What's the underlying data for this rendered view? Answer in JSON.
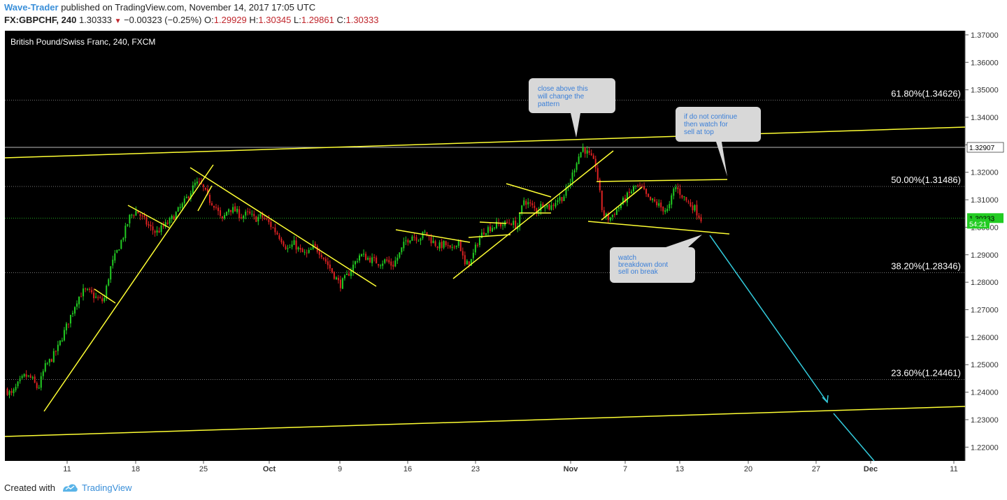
{
  "header": {
    "author": "Wave-Trader",
    "published_text": "published on TradingView.com, November 14, 2017 17:05 UTC",
    "symbol": "FX:GBPCHF, 240",
    "last": "1.30333",
    "change": "−0.00323 (−0.25%)",
    "open_label": "O:",
    "open": "1.29929",
    "high_label": "H:",
    "high": "1.30345",
    "low_label": "L:",
    "low": "1.29861",
    "close_label": "C:",
    "close": "1.30333"
  },
  "footer": {
    "created_with": "Created with",
    "brand": "TradingView"
  },
  "colors": {
    "bg": "#000000",
    "up": "#22cc22",
    "down": "#dd2222",
    "trend": "#ffff33",
    "projection": "#33ccdd",
    "callout": "#d8d8d8",
    "callout_text": "#3a7fd9"
  },
  "chart_data": {
    "type": "candlestick",
    "title": "British Pound/Swiss Franc, 240, FXCM",
    "ylim": [
      1.215,
      1.3715
    ],
    "y_ticks": [
      "1.37000",
      "1.36000",
      "1.35000",
      "1.34000",
      "1.33000",
      "1.32000",
      "1.31000",
      "1.30000",
      "1.29000",
      "1.28000",
      "1.27000",
      "1.26000",
      "1.25000",
      "1.24000",
      "1.23000",
      "1.22000"
    ],
    "x_ticks": [
      "11",
      "18",
      "25",
      "Oct",
      "9",
      "16",
      "23",
      "Nov",
      "7",
      "13",
      "20",
      "27",
      "Dec",
      "11"
    ],
    "fib_levels": [
      {
        "label": "61.80%(1.34626)",
        "value": 1.34626
      },
      {
        "label": "50.00%(1.31486)",
        "value": 1.31486
      },
      {
        "label": "38.20%(1.28346)",
        "value": 1.28346
      },
      {
        "label": "23.60%(1.24461)",
        "value": 1.24461
      }
    ],
    "price_labels": [
      {
        "text": "1.32907",
        "value": 1.32907
      },
      {
        "text": "1.30333",
        "value": 1.30333
      },
      {
        "text": "54:21",
        "value": 1.3013
      }
    ],
    "price_path": [
      [
        0,
        1.241
      ],
      [
        1,
        1.239
      ],
      [
        2,
        1.243
      ],
      [
        3,
        1.246
      ],
      [
        4,
        1.245
      ],
      [
        5,
        1.241
      ],
      [
        6,
        1.249
      ],
      [
        7,
        1.252
      ],
      [
        8,
        1.256
      ],
      [
        9,
        1.262
      ],
      [
        10,
        1.268
      ],
      [
        11,
        1.274
      ],
      [
        12,
        1.277
      ],
      [
        13,
        1.276
      ],
      [
        14,
        1.274
      ],
      [
        15,
        1.273
      ],
      [
        16,
        1.285
      ],
      [
        17,
        1.291
      ],
      [
        18,
        1.297
      ],
      [
        19,
        1.304
      ],
      [
        20,
        1.306
      ],
      [
        21,
        1.303
      ],
      [
        22,
        1.3
      ],
      [
        23,
        1.298
      ],
      [
        24,
        1.3
      ],
      [
        25,
        1.302
      ],
      [
        26,
        1.305
      ],
      [
        27,
        1.308
      ],
      [
        28,
        1.312
      ],
      [
        29,
        1.316
      ],
      [
        30,
        1.315
      ],
      [
        31,
        1.31
      ],
      [
        32,
        1.308
      ],
      [
        33,
        1.302
      ],
      [
        34,
        1.307
      ],
      [
        35,
        1.306
      ],
      [
        36,
        1.304
      ],
      [
        37,
        1.305
      ],
      [
        38,
        1.303
      ],
      [
        39,
        1.304
      ],
      [
        40,
        1.302
      ],
      [
        41,
        1.299
      ],
      [
        42,
        1.296
      ],
      [
        43,
        1.292
      ],
      [
        44,
        1.294
      ],
      [
        45,
        1.291
      ],
      [
        46,
        1.29
      ],
      [
        47,
        1.293
      ],
      [
        48,
        1.291
      ],
      [
        49,
        1.287
      ],
      [
        50,
        1.283
      ],
      [
        51,
        1.279
      ],
      [
        52,
        1.282
      ],
      [
        53,
        1.286
      ],
      [
        54,
        1.29
      ],
      [
        55,
        1.289
      ],
      [
        56,
        1.288
      ],
      [
        57,
        1.287
      ],
      [
        58,
        1.288
      ],
      [
        59,
        1.286
      ],
      [
        60,
        1.29
      ],
      [
        61,
        1.295
      ],
      [
        62,
        1.297
      ],
      [
        63,
        1.296
      ],
      [
        64,
        1.298
      ],
      [
        65,
        1.295
      ],
      [
        66,
        1.293
      ],
      [
        67,
        1.294
      ],
      [
        68,
        1.291
      ],
      [
        69,
        1.296
      ],
      [
        70,
        1.286
      ],
      [
        71,
        1.288
      ],
      [
        72,
        1.295
      ],
      [
        73,
        1.299
      ],
      [
        74,
        1.3
      ],
      [
        75,
        1.301
      ],
      [
        76,
        1.301
      ],
      [
        77,
        1.302
      ],
      [
        78,
        1.3
      ],
      [
        79,
        1.31
      ],
      [
        80,
        1.308
      ],
      [
        81,
        1.306
      ],
      [
        82,
        1.309
      ],
      [
        83,
        1.307
      ],
      [
        84,
        1.31
      ],
      [
        85,
        1.311
      ],
      [
        86,
        1.316
      ],
      [
        87,
        1.324
      ],
      [
        88,
        1.329
      ],
      [
        89,
        1.326
      ],
      [
        90,
        1.322
      ],
      [
        91,
        1.305
      ],
      [
        92,
        1.303
      ],
      [
        93,
        1.306
      ],
      [
        94,
        1.309
      ],
      [
        95,
        1.312
      ],
      [
        96,
        1.315
      ],
      [
        97,
        1.314
      ],
      [
        98,
        1.31
      ],
      [
        99,
        1.309
      ],
      [
        100,
        1.307
      ],
      [
        101,
        1.306
      ],
      [
        102,
        1.315
      ],
      [
        103,
        1.312
      ],
      [
        104,
        1.309
      ],
      [
        105,
        1.307
      ],
      [
        106,
        1.303
      ]
    ],
    "annotations": [
      "close above this will change the pattern",
      "if do not continue then watch for sell at top",
      "watch breakdown dont sell on break"
    ]
  }
}
